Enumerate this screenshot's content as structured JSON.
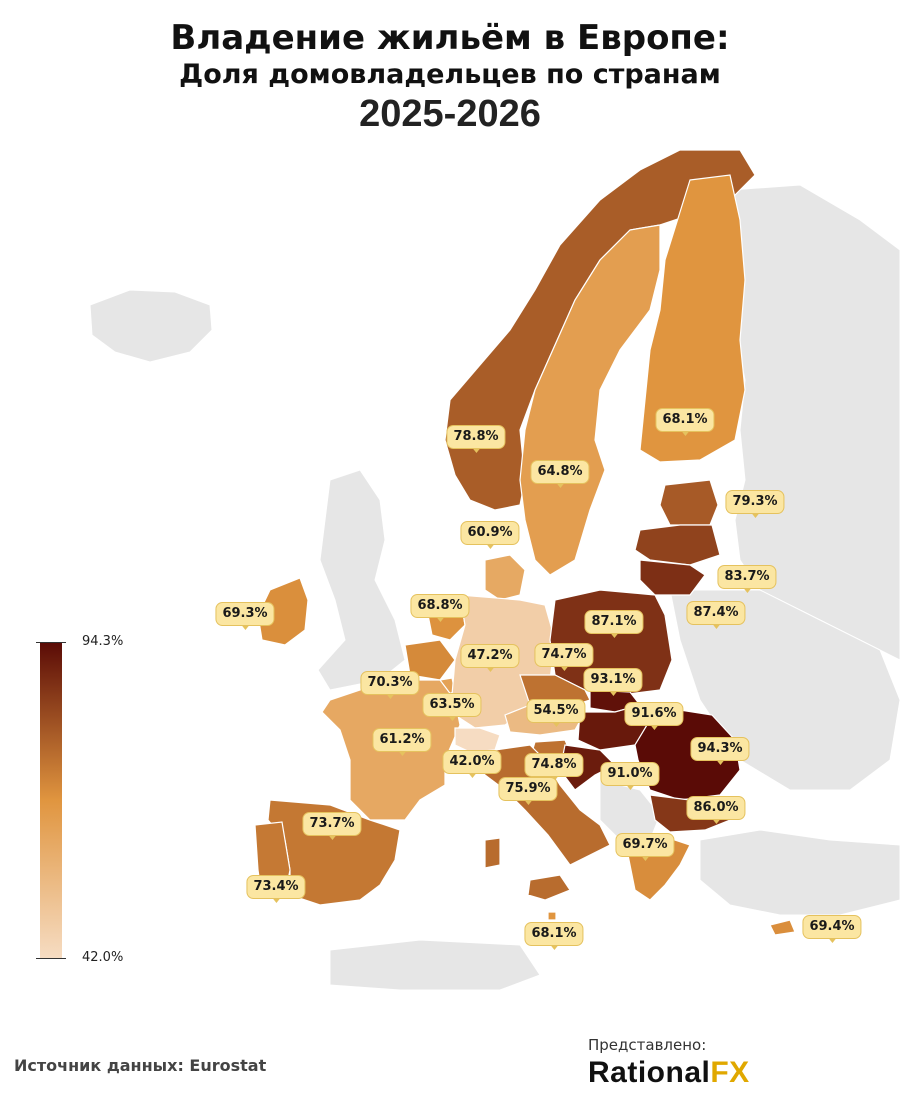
{
  "title": {
    "line1": "Владение жильём в Европе:",
    "line2": "Доля домовладельцев по странам",
    "line3": "2025-2026"
  },
  "legend": {
    "max_label": "94.3%",
    "min_label": "42.0%",
    "min": 42.0,
    "max": 94.3
  },
  "colors": {
    "low": "#f6dcc2",
    "mid": "#e0953f",
    "high": "#5a0b06",
    "non_data_land": "#e6e6e6",
    "sea": "#ffffff",
    "label_bg": "#fbe6a2",
    "label_border": "#e5c25e",
    "brand_accent": "#e0a800"
  },
  "countries": [
    {
      "name": "Norway",
      "label": "78.8%",
      "value": 78.8
    },
    {
      "name": "Sweden",
      "label": "64.8%",
      "value": 64.8
    },
    {
      "name": "Finland",
      "label": "68.1%",
      "value": 68.1
    },
    {
      "name": "Estonia",
      "label": "79.3%",
      "value": 79.3
    },
    {
      "name": "Latvia",
      "label": "83.7%",
      "value": 83.7
    },
    {
      "name": "Lithuania",
      "label": "87.4%",
      "value": 87.4
    },
    {
      "name": "Denmark",
      "label": "60.9%",
      "value": 60.9
    },
    {
      "name": "Ireland",
      "label": "69.3%",
      "value": 69.3
    },
    {
      "name": "Netherlands",
      "label": "68.8%",
      "value": 68.8
    },
    {
      "name": "Belgium",
      "label": "70.3%",
      "value": 70.3
    },
    {
      "name": "Luxembourg",
      "label": "63.5%",
      "value": 63.5
    },
    {
      "name": "Germany",
      "label": "47.2%",
      "value": 47.2
    },
    {
      "name": "Poland",
      "label": "87.1%",
      "value": 87.1
    },
    {
      "name": "Czechia",
      "label": "74.7%",
      "value": 74.7
    },
    {
      "name": "Slovakia",
      "label": "93.1%",
      "value": 93.1
    },
    {
      "name": "Austria",
      "label": "54.5%",
      "value": 54.5
    },
    {
      "name": "Hungary",
      "label": "91.6%",
      "value": 91.6
    },
    {
      "name": "Romania",
      "label": "94.3%",
      "value": 94.3
    },
    {
      "name": "France",
      "label": "61.2%",
      "value": 61.2
    },
    {
      "name": "Switzerland",
      "label": "42.0%",
      "value": 42.0
    },
    {
      "name": "Slovenia",
      "label": "74.8%",
      "value": 74.8
    },
    {
      "name": "Croatia",
      "label": "91.0%",
      "value": 91.0
    },
    {
      "name": "Italy",
      "label": "75.9%",
      "value": 75.9
    },
    {
      "name": "Bulgaria",
      "label": "86.0%",
      "value": 86.0
    },
    {
      "name": "Spain",
      "label": "73.7%",
      "value": 73.7
    },
    {
      "name": "Portugal",
      "label": "73.4%",
      "value": 73.4
    },
    {
      "name": "Greece",
      "label": "69.7%",
      "value": 69.7
    },
    {
      "name": "Malta",
      "label": "68.1%",
      "value": 68.1
    },
    {
      "name": "Cyprus",
      "label": "69.4%",
      "value": 69.4
    }
  ],
  "footer": {
    "source": "Источник данных: Eurostat",
    "presented_by": "Представлено:",
    "brand_main": "Rational",
    "brand_accent": "FX"
  }
}
